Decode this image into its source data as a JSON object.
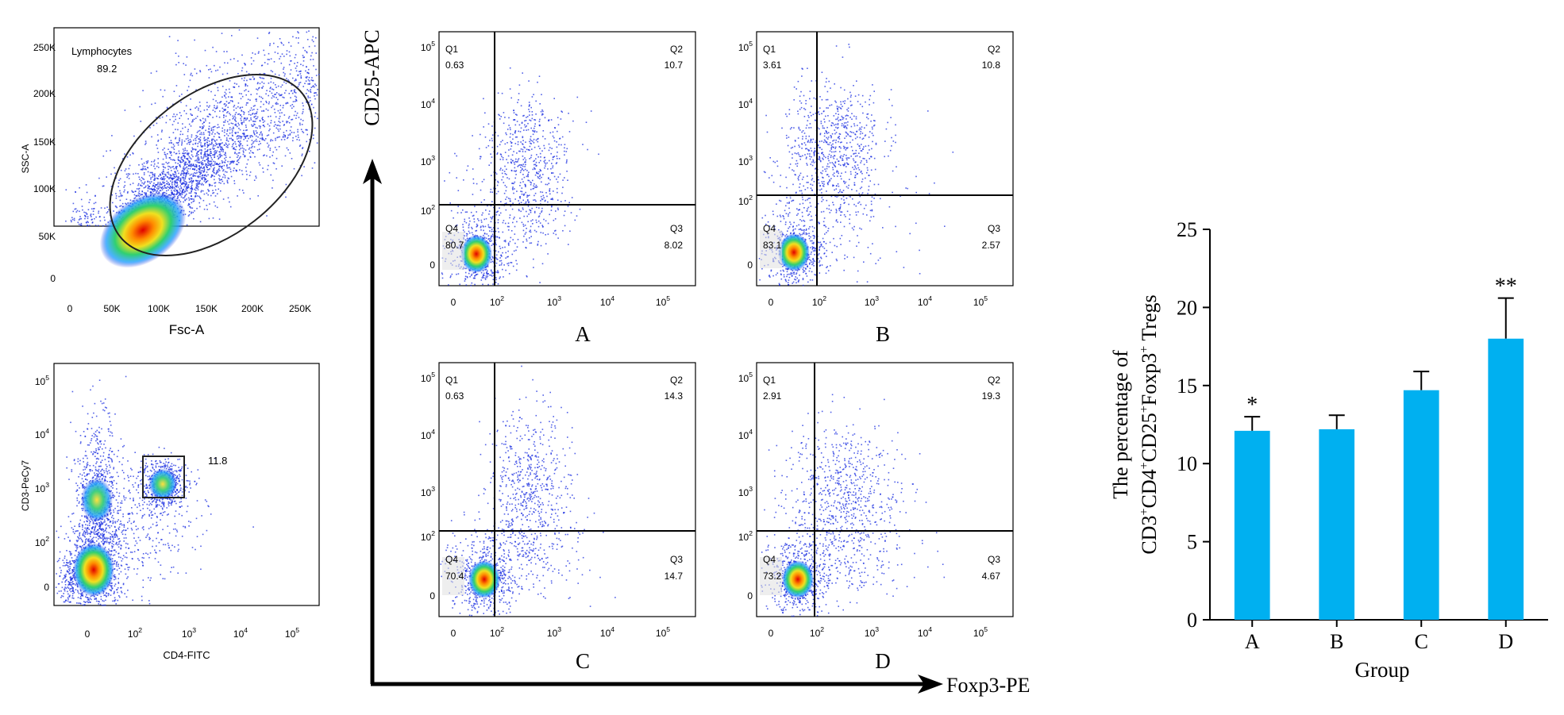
{
  "figure": {
    "axis_main_y": "CD25-APC",
    "axis_main_x": "Foxp3-PE"
  },
  "gating_scatter": {
    "gate_name": "Lymphocytes",
    "gate_value": "89.2",
    "xlabel": "Fsc-A",
    "ylabel": "SSC-A",
    "x_ticks": [
      "0",
      "50K",
      "100K",
      "150K",
      "200K",
      "250K"
    ],
    "y_ticks": [
      "0",
      "50K",
      "100K",
      "150K",
      "200K",
      "250K"
    ]
  },
  "cd3cd4_plot": {
    "gate_value": "11.8",
    "xlabel": "CD4-FITC",
    "ylabel": "CD3-PeCy7",
    "x_ticks": [
      "0",
      "10^2",
      "10^3",
      "10^4",
      "10^5"
    ],
    "y_ticks": [
      "0",
      "10^2",
      "10^3",
      "10^4",
      "10^5"
    ]
  },
  "quadrant_plots": [
    {
      "label": "A",
      "q1": "0.63",
      "q2": "10.7",
      "q3": "8.02",
      "q4": "80.7"
    },
    {
      "label": "B",
      "q1": "3.61",
      "q2": "10.8",
      "q3": "2.57",
      "q4": "83.1"
    },
    {
      "label": "C",
      "q1": "0.63",
      "q2": "14.3",
      "q3": "14.7",
      "q4": "70.4"
    },
    {
      "label": "D",
      "q1": "2.91",
      "q2": "19.3",
      "q3": "4.67",
      "q4": "73.2"
    }
  ],
  "quadrant_names": [
    "Q1",
    "Q2",
    "Q3",
    "Q4"
  ],
  "log_ticks": [
    "0",
    "10^2",
    "10^3",
    "10^4",
    "10^5"
  ],
  "colors": {
    "bar": "#00b0f0",
    "dots": "#1a2ee0",
    "axes": "#000000"
  },
  "chart_data": {
    "type": "bar",
    "categories": [
      "A",
      "B",
      "C",
      "D"
    ],
    "values": [
      12.1,
      12.2,
      14.7,
      18.0
    ],
    "errors": [
      0.9,
      0.9,
      1.2,
      2.6
    ],
    "significance": [
      "*",
      "",
      "",
      "**"
    ],
    "xlabel": "Group",
    "ylabel_line1": "The percentage of",
    "ylabel_line2": "CD3+CD4+CD25+Foxp3+ Tregs",
    "ylim": [
      0,
      25
    ],
    "yticks": [
      0,
      5,
      10,
      15,
      20,
      25
    ]
  }
}
